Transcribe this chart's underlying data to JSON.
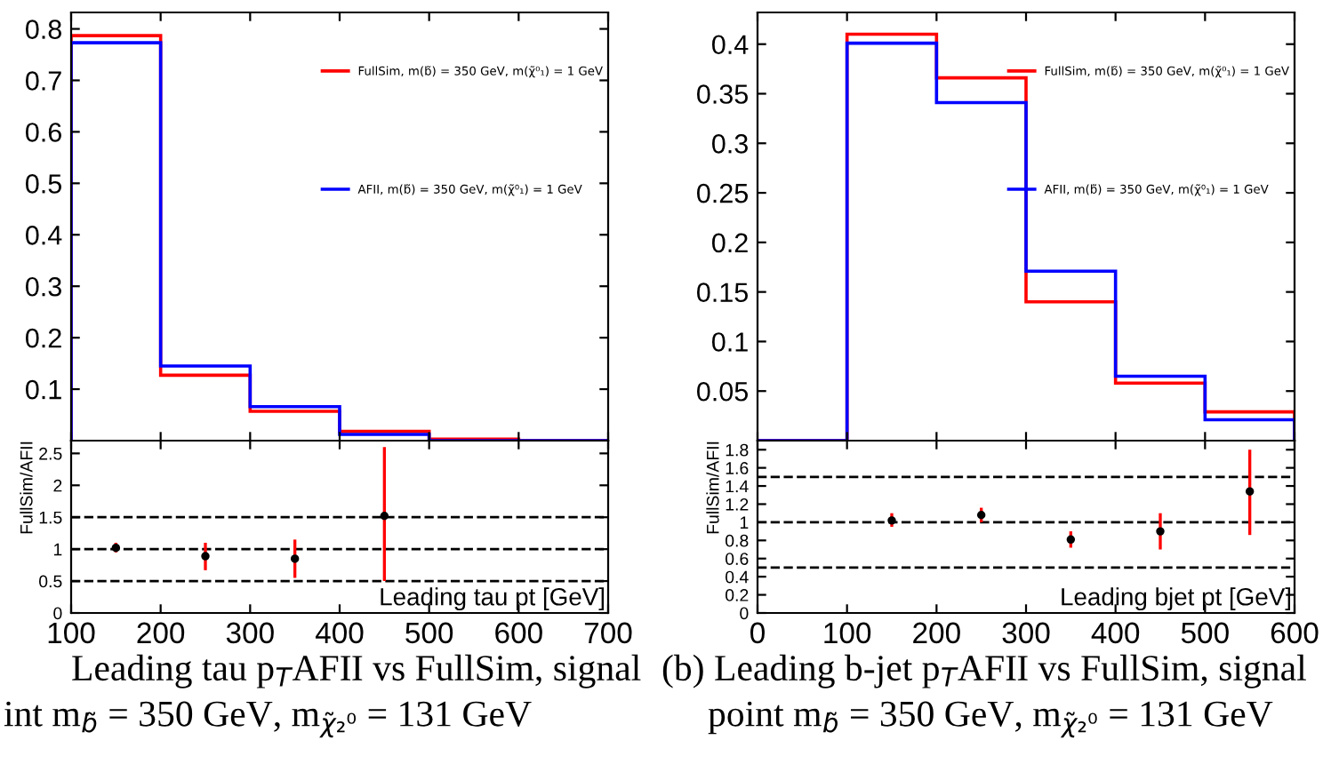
{
  "chart_data": [
    {
      "type": "histogram",
      "bins": [
        100,
        200,
        300,
        400,
        500,
        600,
        700
      ],
      "xlim": [
        100,
        700
      ],
      "xticks": [
        100,
        200,
        300,
        400,
        500,
        600,
        700
      ],
      "ylim": [
        0,
        0.832
      ],
      "yticks": [
        0.1,
        0.2,
        0.3,
        0.4,
        0.5,
        0.6,
        0.7,
        0.8
      ],
      "tick_labels": "y",
      "legend": "top right",
      "grid": false,
      "series": [
        {
          "name": "FullSim, m(b̃) = 350 GeV, m(χ̃⁰₁) = 1 GeV",
          "color": "#ff0000",
          "values": [
            0.787,
            0.127,
            0.057,
            0.018,
            0.003,
            0
          ]
        },
        {
          "name": "AFII, m(b̃) = 350 GeV, m(χ̃⁰₁) = 1 GeV",
          "color": "#0000ff",
          "values": [
            0.773,
            0.145,
            0.066,
            0.012,
            0,
            0
          ]
        }
      ]
    },
    {
      "type": "scatter",
      "x": [
        150,
        250,
        350,
        450
      ],
      "xlim": [
        100,
        700
      ],
      "xticks": [
        100,
        200,
        300,
        400,
        500,
        600,
        700
      ],
      "ylim": [
        0,
        2.7
      ],
      "yticks": [
        0,
        0.5,
        1,
        1.5,
        2,
        2.5
      ],
      "xlabel": "Leading tau pt [GeV]",
      "ylabel": "FullSim/AFII",
      "marker": "circle",
      "grid": false,
      "ref_lines": [
        {
          "axis": "y",
          "value": 0.5,
          "line_style": "dashed"
        },
        {
          "axis": "y",
          "value": 1,
          "line_style": "dashed"
        },
        {
          "axis": "y",
          "value": 1.5,
          "line_style": "dashed"
        }
      ],
      "series": [
        {
          "color": "#000000",
          "values": [
            1.02,
            0.89,
            0.85,
            1.52
          ],
          "errors": [
            [
              0.95,
              1.1
            ],
            [
              0.67,
              1.1
            ],
            [
              0.55,
              1.15
            ],
            [
              0.5,
              2.6
            ]
          ]
        }
      ],
      "annotations": [
        "Leading tau p$_{T}$AFII vs FullSim, signal",
        "int m$_{b̃}$ = 350 GeV, m$_{χ̃₂⁰}$ = 131 GeV"
      ]
    },
    {
      "type": "histogram",
      "bins": [
        0,
        100,
        200,
        300,
        400,
        500,
        600
      ],
      "xlim": [
        0,
        600
      ],
      "xticks": [
        0,
        100,
        200,
        300,
        400,
        500,
        600
      ],
      "ylim": [
        0,
        0.432
      ],
      "yticks": [
        0.05,
        0.1,
        0.15,
        0.2,
        0.25,
        0.3,
        0.35,
        0.4
      ],
      "tick_labels": "y",
      "legend": "top right",
      "grid": false,
      "series": [
        {
          "name": "FullSim, m(b̃) = 350 GeV, m(χ̃⁰₁) = 1 GeV",
          "color": "#ff0000",
          "values": [
            0,
            0.41,
            0.366,
            0.14,
            0.058,
            0.029
          ]
        },
        {
          "name": "AFII, m(b̃) = 350 GeV, m(χ̃⁰₁) = 1 GeV",
          "color": "#0000ff",
          "values": [
            0,
            0.401,
            0.341,
            0.171,
            0.065,
            0.021
          ]
        }
      ]
    },
    {
      "type": "scatter",
      "x": [
        150,
        250,
        350,
        450,
        550
      ],
      "xlim": [
        0,
        600
      ],
      "xticks": [
        0,
        100,
        200,
        300,
        400,
        500,
        600
      ],
      "ylim": [
        0,
        1.9
      ],
      "yticks": [
        0,
        0.2,
        0.4,
        0.6,
        0.8,
        1,
        1.2,
        1.4,
        1.6,
        1.8
      ],
      "xlabel": "Leading bjet pt [GeV]",
      "ylabel": "FullSim/AFII",
      "marker": "circle",
      "grid": false,
      "ref_lines": [
        {
          "axis": "y",
          "value": 0.5,
          "line_style": "dashed"
        },
        {
          "axis": "y",
          "value": 1,
          "line_style": "dashed"
        },
        {
          "axis": "y",
          "value": 1.5,
          "line_style": "dashed"
        }
      ],
      "series": [
        {
          "color": "#000000",
          "values": [
            1.02,
            1.08,
            0.81,
            0.9,
            1.34
          ],
          "errors": [
            [
              0.95,
              1.1
            ],
            [
              1.0,
              1.16
            ],
            [
              0.72,
              0.9
            ],
            [
              0.7,
              1.1
            ],
            [
              0.86,
              1.8
            ]
          ]
        }
      ],
      "annotations": [
        "(b) Leading b-jet p$_{T}$AFII vs FullSim, signal",
        "point m$_{b̃}$ = 350 GeV, m$_{χ̃₂⁰}$ = 131 GeV"
      ]
    }
  ]
}
